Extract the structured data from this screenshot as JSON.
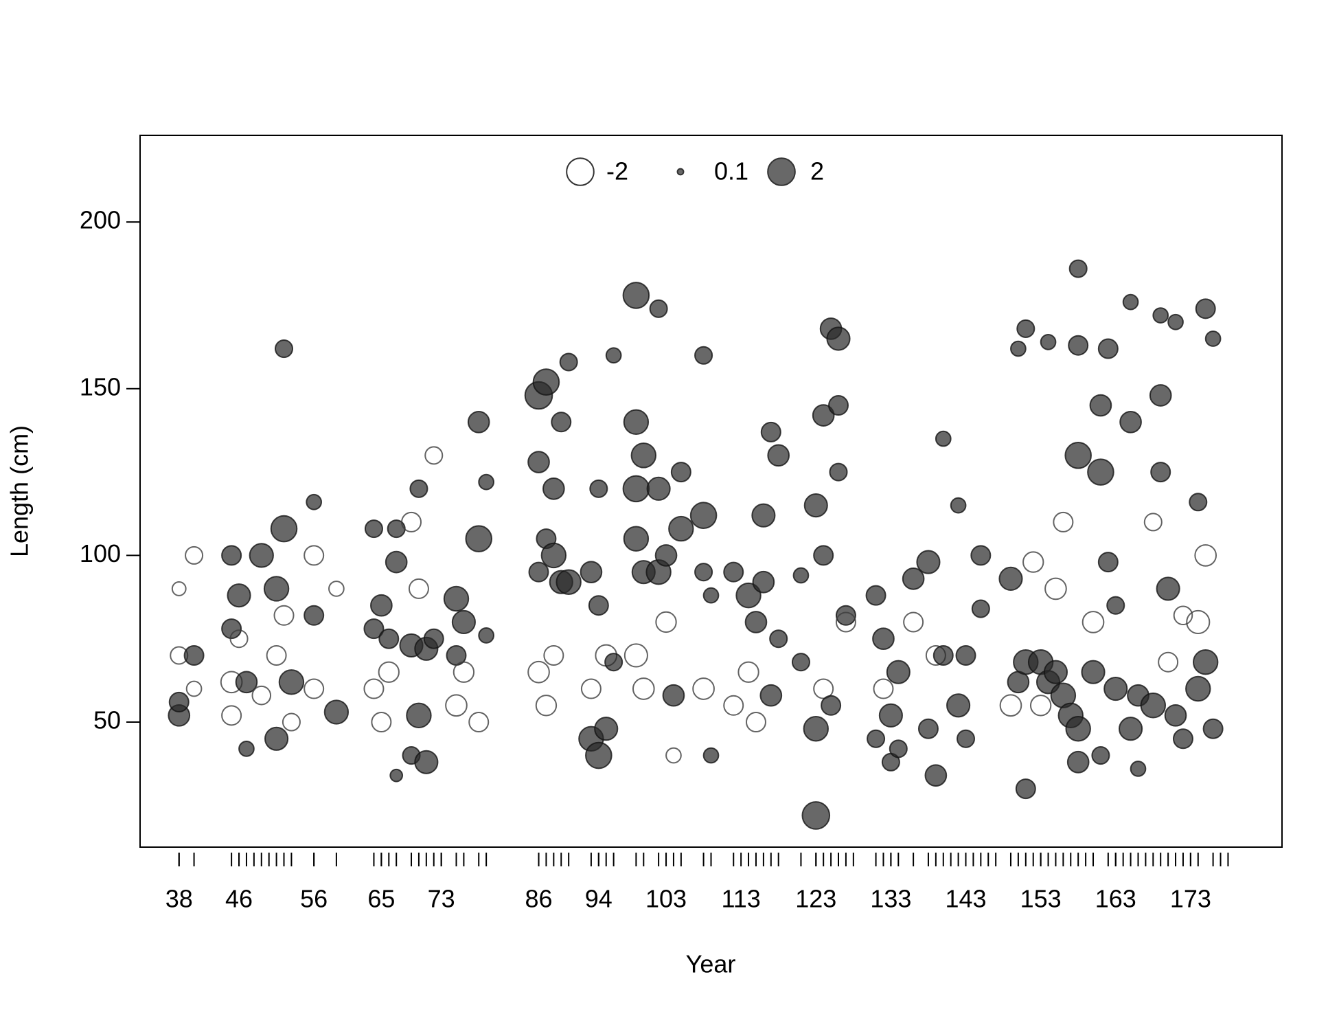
{
  "chart_data": {
    "type": "bubble",
    "x_label": "Year",
    "y_label": "Length (cm)",
    "legend": [
      -2,
      0.1,
      2
    ],
    "xlim": [
      32.8,
      185.2
    ],
    "ylim": [
      12.5,
      226
    ],
    "xticks": [
      38,
      46,
      56,
      65,
      73,
      86,
      94,
      103,
      113,
      123,
      133,
      143,
      153,
      163,
      173
    ],
    "yticks": [
      50,
      100,
      150,
      200
    ],
    "years": [
      38,
      40,
      45,
      46,
      47,
      48,
      49,
      50,
      51,
      52,
      53,
      56,
      59,
      64,
      65,
      66,
      67,
      69,
      70,
      71,
      72,
      73,
      75,
      76,
      78,
      79,
      86,
      87,
      88,
      89,
      90,
      93,
      94,
      95,
      96,
      99,
      100,
      102,
      103,
      104,
      105,
      108,
      109,
      112,
      114,
      115,
      116,
      117,
      118,
      121,
      123,
      124,
      125,
      126,
      127,
      128,
      131,
      132,
      133,
      134,
      136,
      138,
      139,
      140,
      141,
      142,
      143,
      144,
      145,
      146,
      147,
      149,
      150,
      151,
      152,
      153,
      154,
      155,
      156,
      157,
      158,
      159,
      160,
      162,
      163,
      164,
      165,
      166,
      167,
      168,
      169,
      170,
      171,
      172,
      173,
      174,
      176,
      177,
      178
    ],
    "x": [
      38,
      38,
      38,
      38,
      40,
      40,
      40,
      45,
      45,
      45,
      45,
      46,
      46,
      47,
      47,
      49,
      49,
      51,
      51,
      51,
      52,
      52,
      52,
      53,
      53,
      56,
      56,
      56,
      56,
      59,
      59,
      64,
      64,
      64,
      65,
      65,
      66,
      66,
      67,
      67,
      67,
      69,
      69,
      69,
      70,
      70,
      70,
      71,
      71,
      72,
      72,
      75,
      75,
      75,
      76,
      76,
      78,
      78,
      78,
      79,
      79,
      86,
      86,
      86,
      86,
      87,
      87,
      87,
      88,
      88,
      88,
      89,
      89,
      90,
      90,
      93,
      93,
      93,
      94,
      94,
      94,
      95,
      95,
      96,
      96,
      99,
      99,
      99,
      99,
      99,
      100,
      100,
      100,
      102,
      102,
      102,
      103,
      103,
      104,
      104,
      105,
      105,
      108,
      108,
      108,
      108,
      109,
      109,
      112,
      112,
      114,
      114,
      115,
      115,
      116,
      116,
      117,
      117,
      118,
      118,
      121,
      121,
      123,
      123,
      123,
      124,
      124,
      124,
      125,
      125,
      126,
      126,
      126,
      127,
      127,
      131,
      131,
      132,
      132,
      133,
      133,
      134,
      134,
      136,
      136,
      138,
      138,
      139,
      139,
      140,
      140,
      142,
      142,
      143,
      143,
      145,
      145,
      149,
      149,
      150,
      150,
      151,
      151,
      151,
      152,
      153,
      153,
      154,
      154,
      155,
      155,
      156,
      156,
      157,
      158,
      158,
      158,
      158,
      158,
      160,
      160,
      161,
      161,
      161,
      162,
      162,
      163,
      163,
      165,
      165,
      165,
      166,
      166,
      168,
      168,
      169,
      169,
      169,
      170,
      170,
      171,
      171,
      172,
      172,
      174,
      174,
      174,
      175,
      175,
      175,
      176,
      176
    ],
    "y": [
      52,
      56,
      70,
      90,
      70,
      100,
      60,
      100,
      78,
      62,
      52,
      88,
      75,
      62,
      42,
      100,
      58,
      45,
      90,
      70,
      108,
      162,
      82,
      62,
      50,
      82,
      116,
      100,
      60,
      53,
      90,
      108,
      78,
      60,
      85,
      50,
      75,
      65,
      98,
      108,
      34,
      73,
      40,
      110,
      52,
      120,
      90,
      38,
      72,
      75,
      130,
      70,
      87,
      55,
      80,
      65,
      105,
      140,
      50,
      122,
      76,
      148,
      128,
      95,
      65,
      152,
      105,
      55,
      100,
      120,
      70,
      140,
      92,
      92,
      158,
      45,
      95,
      60,
      40,
      85,
      120,
      48,
      70,
      68,
      160,
      178,
      140,
      120,
      105,
      70,
      130,
      95,
      60,
      174,
      120,
      95,
      100,
      80,
      58,
      40,
      108,
      125,
      112,
      160,
      95,
      60,
      40,
      88,
      95,
      55,
      88,
      65,
      80,
      50,
      112,
      92,
      58,
      137,
      130,
      75,
      94,
      68,
      22,
      48,
      115,
      142,
      100,
      60,
      168,
      55,
      165,
      145,
      125,
      82,
      80,
      88,
      45,
      75,
      60,
      52,
      38,
      65,
      42,
      93,
      80,
      98,
      48,
      34,
      70,
      70,
      135,
      55,
      115,
      70,
      45,
      100,
      84,
      93,
      55,
      62,
      162,
      68,
      168,
      30,
      98,
      68,
      55,
      62,
      164,
      65,
      90,
      58,
      110,
      52,
      130,
      48,
      38,
      163,
      186,
      65,
      80,
      125,
      145,
      40,
      162,
      98,
      60,
      85,
      48,
      140,
      176,
      58,
      36,
      55,
      110,
      148,
      172,
      125,
      90,
      68,
      52,
      170,
      45,
      82,
      116,
      80,
      60,
      68,
      174,
      100,
      48,
      165
    ],
    "size": [
      1.2,
      1.0,
      -0.8,
      -0.5,
      1.0,
      -0.8,
      -0.6,
      1.0,
      1.0,
      -1.2,
      -1.0,
      1.4,
      -0.8,
      1.2,
      0.6,
      1.5,
      -0.9,
      1.4,
      1.6,
      -1.0,
      1.8,
      0.8,
      -1.0,
      1.6,
      -0.8,
      1.0,
      0.6,
      -1.0,
      -1.0,
      1.5,
      -0.6,
      0.8,
      1.0,
      -1.0,
      1.2,
      -1.0,
      1.0,
      -1.1,
      1.2,
      0.8,
      0.4,
      1.4,
      0.8,
      -1.0,
      1.6,
      0.8,
      -1.0,
      1.4,
      1.4,
      1.0,
      -0.8,
      1.0,
      1.6,
      -1.2,
      1.4,
      -1.1,
      1.8,
      1.2,
      -1.0,
      0.6,
      0.6,
      2.0,
      1.2,
      1.0,
      -1.2,
      1.8,
      1.0,
      -1.1,
      1.6,
      1.2,
      -1.0,
      1.0,
      1.4,
      1.6,
      0.8,
      1.6,
      1.2,
      -1.0,
      1.8,
      1.0,
      0.8,
      1.4,
      -1.2,
      0.8,
      0.6,
      1.8,
      1.6,
      1.8,
      1.6,
      -1.4,
      1.6,
      1.4,
      -1.2,
      0.8,
      1.4,
      1.6,
      1.2,
      -1.1,
      1.2,
      -0.6,
      1.6,
      1.0,
      1.8,
      0.8,
      0.8,
      -1.2,
      0.6,
      0.6,
      1.0,
      -1.0,
      1.6,
      -1.1,
      1.2,
      -1.0,
      1.4,
      1.2,
      1.2,
      1.0,
      1.2,
      0.8,
      0.6,
      0.8,
      2.0,
      1.6,
      1.4,
      1.2,
      1.0,
      -1.0,
      1.2,
      1.0,
      1.4,
      1.0,
      0.8,
      1.0,
      -1.0,
      1.0,
      0.8,
      1.2,
      -1.0,
      1.4,
      0.8,
      1.4,
      0.8,
      1.2,
      -1.0,
      1.4,
      1.0,
      1.2,
      -1.0,
      1.0,
      0.6,
      1.4,
      0.6,
      1.0,
      0.8,
      1.0,
      0.8,
      1.4,
      -1.2,
      1.2,
      0.6,
      1.6,
      0.8,
      1.0,
      -1.1,
      1.6,
      -1.1,
      1.4,
      0.6,
      1.4,
      -1.2,
      1.6,
      -1.0,
      1.6,
      1.8,
      1.6,
      1.2,
      1.0,
      0.8,
      1.4,
      -1.2,
      1.8,
      1.2,
      0.8,
      1.0,
      1.0,
      1.4,
      0.8,
      1.4,
      1.2,
      0.6,
      1.2,
      0.6,
      1.6,
      -0.8,
      1.2,
      0.6,
      1.0,
      1.4,
      -1.0,
      1.2,
      0.6,
      1.0,
      -0.9,
      0.8,
      -1.4,
      1.6,
      1.6,
      1.0,
      -1.2,
      1.0,
      0.6
    ]
  }
}
